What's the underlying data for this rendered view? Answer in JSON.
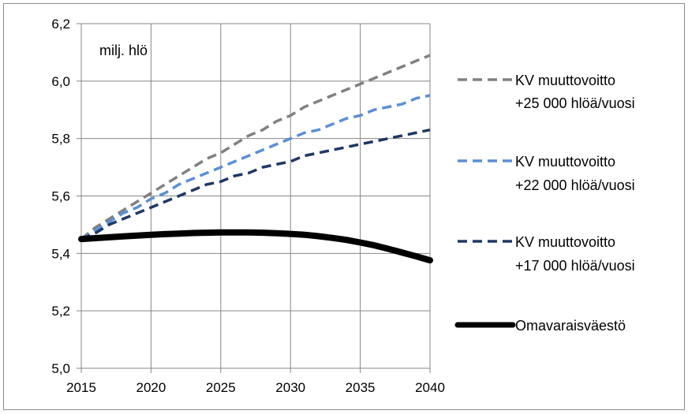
{
  "chart_data": {
    "type": "line",
    "title": "",
    "unit_label": "milj. hlö",
    "xlabel": "",
    "ylabel": "",
    "x_ticks": [
      "2015",
      "2020",
      "2025",
      "2030",
      "2035",
      "2040"
    ],
    "y_ticks": [
      "5,0",
      "5,2",
      "5,4",
      "5,6",
      "5,8",
      "6,0",
      "6,2"
    ],
    "xlim": [
      2015,
      2040
    ],
    "ylim": [
      5.0,
      6.2
    ],
    "grid": true,
    "legend_position": "right",
    "series": [
      {
        "name_line1": "KV muuttovoitto",
        "name_line2": "+25 000 hlöä/vuosi",
        "color": "#808080",
        "style": "dashed",
        "x": [
          2015,
          2016,
          2017,
          2018,
          2019,
          2020,
          2021,
          2022,
          2023,
          2024,
          2025,
          2026,
          2027,
          2028,
          2029,
          2030,
          2031,
          2032,
          2033,
          2034,
          2035,
          2036,
          2037,
          2038,
          2039,
          2040
        ],
        "y": [
          5.45,
          5.49,
          5.52,
          5.55,
          5.58,
          5.61,
          5.64,
          5.67,
          5.7,
          5.73,
          5.75,
          5.78,
          5.81,
          5.83,
          5.86,
          5.88,
          5.91,
          5.93,
          5.95,
          5.97,
          5.99,
          6.01,
          6.03,
          6.05,
          6.07,
          6.09
        ]
      },
      {
        "name_line1": "KV muuttovoitto",
        "name_line2": "+22 000 hlöä/vuosi",
        "color": "#5b8fd4",
        "style": "dashed",
        "x": [
          2015,
          2016,
          2017,
          2018,
          2019,
          2020,
          2021,
          2022,
          2023,
          2024,
          2025,
          2026,
          2027,
          2028,
          2029,
          2030,
          2031,
          2032,
          2033,
          2034,
          2035,
          2036,
          2037,
          2038,
          2039,
          2040
        ],
        "y": [
          5.45,
          5.48,
          5.51,
          5.54,
          5.56,
          5.59,
          5.61,
          5.64,
          5.66,
          5.68,
          5.7,
          5.72,
          5.74,
          5.76,
          5.78,
          5.8,
          5.82,
          5.83,
          5.85,
          5.87,
          5.88,
          5.9,
          5.91,
          5.92,
          5.94,
          5.95
        ]
      },
      {
        "name_line1": "KV muuttovoitto",
        "name_line2": "+17 000 hlöä/vuosi",
        "color": "#1f3864",
        "style": "dashed",
        "x": [
          2015,
          2016,
          2017,
          2018,
          2019,
          2020,
          2021,
          2022,
          2023,
          2024,
          2025,
          2026,
          2027,
          2028,
          2029,
          2030,
          2031,
          2032,
          2033,
          2034,
          2035,
          2036,
          2037,
          2038,
          2039,
          2040
        ],
        "y": [
          5.45,
          5.47,
          5.5,
          5.52,
          5.54,
          5.56,
          5.58,
          5.6,
          5.62,
          5.64,
          5.65,
          5.67,
          5.68,
          5.7,
          5.71,
          5.72,
          5.74,
          5.75,
          5.76,
          5.77,
          5.78,
          5.79,
          5.8,
          5.81,
          5.82,
          5.83
        ]
      },
      {
        "name_line1": "Omavaraisväestö",
        "name_line2": "",
        "color": "#000000",
        "style": "solid",
        "x": [
          2015,
          2016,
          2017,
          2018,
          2019,
          2020,
          2021,
          2022,
          2023,
          2024,
          2025,
          2026,
          2027,
          2028,
          2029,
          2030,
          2031,
          2032,
          2033,
          2034,
          2035,
          2036,
          2037,
          2038,
          2039,
          2040
        ],
        "y": [
          5.45,
          5.453,
          5.456,
          5.459,
          5.462,
          5.465,
          5.467,
          5.469,
          5.471,
          5.472,
          5.473,
          5.473,
          5.473,
          5.472,
          5.47,
          5.468,
          5.465,
          5.46,
          5.454,
          5.447,
          5.438,
          5.428,
          5.416,
          5.403,
          5.39,
          5.376
        ]
      }
    ]
  }
}
